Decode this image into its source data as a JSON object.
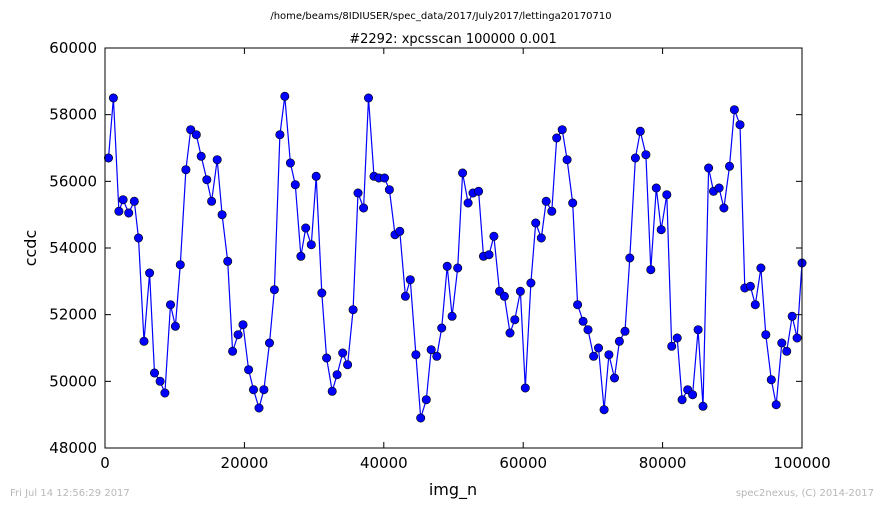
{
  "header": {
    "path": "/home/beams/8IDIUSER/spec_data/2017/July2017/lettinga20170710",
    "title": "#2292: xpcsscan 100000 0.001"
  },
  "footer": {
    "timestamp": "Fri Jul 14 12:56:29 2017",
    "credit": "spec2nexus, (C) 2014-2017"
  },
  "colors": {
    "series": "#0000ff",
    "marker_edge": "#000000",
    "axes": "#000000"
  },
  "chart_data": {
    "type": "line",
    "title": "#2292: xpcsscan 100000 0.001",
    "xlabel": "img_n",
    "ylabel": "ccdc",
    "xlim": [
      0,
      100000
    ],
    "ylim": [
      48000,
      60000
    ],
    "xticks": [
      0,
      20000,
      40000,
      60000,
      80000,
      100000
    ],
    "yticks": [
      48000,
      50000,
      52000,
      54000,
      56000,
      58000,
      60000
    ],
    "grid": false,
    "markers": "circle",
    "series": [
      {
        "x": [
          500,
          1200,
          2000,
          2600,
          3400,
          4200,
          4800,
          5600,
          6400,
          7100,
          7900,
          8600,
          9400,
          10100,
          10800,
          11600,
          12300,
          13100,
          13800,
          14600,
          15300,
          16100,
          16800,
          17600,
          18300,
          19100,
          19800,
          20600,
          21300,
          22100,
          22800,
          23600,
          24300,
          25100,
          25800,
          26600,
          27300,
          28100,
          28800,
          29600,
          30300,
          31100,
          31800,
          32600,
          33300,
          34100,
          34800,
          35600,
          36300,
          37100,
          37800,
          38600,
          39300,
          40100,
          40800,
          41600,
          42300,
          43100,
          43800,
          44600,
          45300,
          46100,
          46800,
          47600,
          48300,
          49100,
          49800,
          50600,
          51300,
          52100,
          52800,
          53600,
          54300,
          55100,
          55800,
          56600,
          57300,
          58100,
          58800,
          59600,
          60300,
          61100,
          61800,
          62600,
          63300,
          64100,
          64800,
          65600,
          66300,
          67100,
          67800,
          68600,
          69300,
          70100,
          70800,
          71600,
          72300,
          73100,
          73800,
          74600,
          75300,
          76100,
          76800,
          77600,
          78300,
          79100,
          79800,
          80600,
          81300,
          82100,
          82800,
          83600,
          84300,
          85100,
          85800,
          86600,
          87300,
          88100,
          88800,
          89600,
          90300,
          91100,
          91800,
          92600,
          93300,
          94100,
          94800,
          95600,
          96300,
          97100,
          97800,
          98600,
          99300,
          100000
        ],
        "values": [
          56700,
          58500,
          55100,
          55450,
          55050,
          55400,
          54300,
          51200,
          53250,
          50250,
          50000,
          49650,
          52300,
          51650,
          53500,
          56350,
          57550,
          57400,
          56750,
          56050,
          55400,
          56650,
          55000,
          53600,
          50900,
          51400,
          51700,
          50350,
          49750,
          49200,
          49750,
          51150,
          52750,
          57400,
          58550,
          56550,
          55900,
          53750,
          54600,
          54100,
          56150,
          52650,
          50700,
          49700,
          50200,
          50850,
          50500,
          52150,
          55650,
          55200,
          58500,
          56150,
          56100,
          56100,
          55750,
          54400,
          54500,
          52550,
          53050,
          50800,
          48900,
          49450,
          50950,
          50750,
          51600,
          53450,
          51950,
          53400,
          56250,
          55350,
          55650,
          55700,
          53750,
          53800,
          54350,
          52700,
          52550,
          51450,
          51850,
          52700,
          49800,
          52950,
          54750,
          54300,
          55400,
          55100,
          57300,
          57550,
          56650,
          55350,
          52300,
          51800,
          51550,
          50750,
          51000,
          49150,
          50800,
          50100,
          51200,
          51500,
          53700,
          56700,
          57500,
          56800,
          53350,
          55800,
          54550,
          55600,
          51050,
          51300,
          49450,
          49750,
          49600,
          51550,
          49250,
          56400,
          55700,
          55800,
          55200,
          56450,
          58150,
          57700,
          52800,
          52850,
          52300,
          53400,
          51400,
          50050,
          49300,
          51150,
          50900,
          51950,
          51300,
          53550
        ],
        "values_tail": 53950
      }
    ]
  }
}
